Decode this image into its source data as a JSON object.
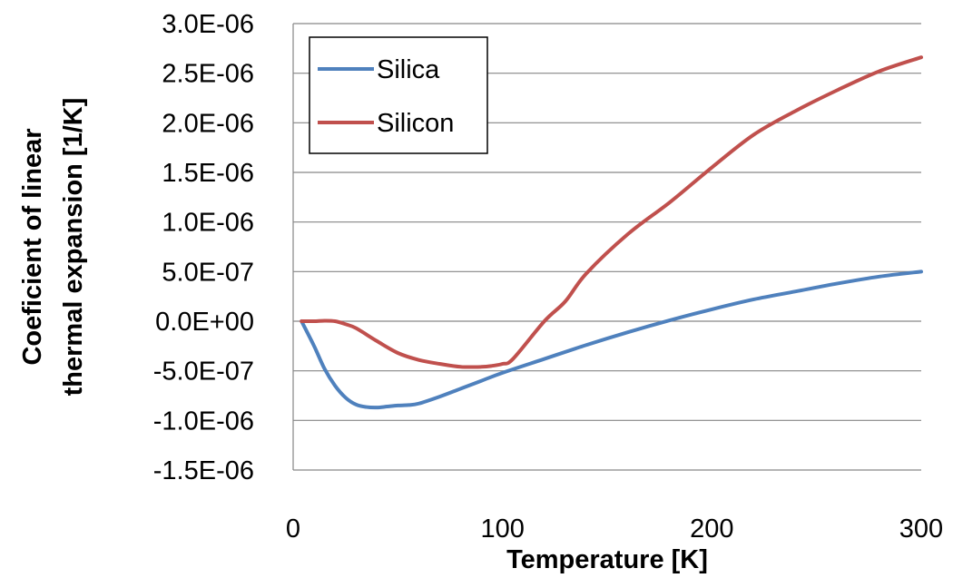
{
  "chart_data": {
    "type": "line",
    "title": "",
    "xlabel": "Temperature [K]",
    "ylabel_lines": [
      "Coeficient of linear",
      "thermal expansion [1/K]"
    ],
    "xlim": [
      0,
      300
    ],
    "ylim": [
      -1.5e-06,
      3e-06
    ],
    "x_ticks": [
      0,
      100,
      200,
      300
    ],
    "x_tick_labels": [
      "0",
      "100",
      "200",
      "300"
    ],
    "y_ticks": [
      3e-06,
      2.5e-06,
      2e-06,
      1.5e-06,
      1e-06,
      5e-07,
      0,
      -5e-07,
      -1e-06,
      -1.5e-06
    ],
    "y_tick_labels": [
      "3.0E-06",
      "2.5E-06",
      "2.0E-06",
      "1.5E-06",
      "1.0E-06",
      "5.0E-07",
      "0.0E+00",
      "-5.0E-07",
      "-1.0E-06",
      "-1.5E-06"
    ],
    "grid": "horizontal",
    "legend_position": "top-left",
    "series": [
      {
        "name": "Silica",
        "color": "#4f81bd",
        "x": [
          4,
          10,
          15,
          20,
          25,
          30,
          35,
          40,
          45,
          50,
          55,
          60,
          70,
          80,
          90,
          100,
          120,
          140,
          160,
          180,
          200,
          220,
          240,
          260,
          280,
          300
        ],
        "y": [
          0,
          -2.5e-07,
          -4.8e-07,
          -6.5e-07,
          -7.7e-07,
          -8.4e-07,
          -8.65e-07,
          -8.7e-07,
          -8.6e-07,
          -8.5e-07,
          -8.45e-07,
          -8.3e-07,
          -7.6e-07,
          -6.8e-07,
          -6e-07,
          -5.2e-07,
          -3.8e-07,
          -2.4e-07,
          -1.1e-07,
          1e-08,
          1.2e-07,
          2.2e-07,
          3e-07,
          3.8e-07,
          4.5e-07,
          5e-07
        ]
      },
      {
        "name": "Silicon",
        "color": "#c0504d",
        "x": [
          4,
          10,
          15,
          20,
          25,
          30,
          40,
          50,
          60,
          70,
          80,
          90,
          95,
          100,
          105,
          120,
          130,
          140,
          160,
          180,
          200,
          220,
          240,
          260,
          280,
          300
        ],
        "y": [
          0,
          0,
          5e-09,
          0,
          -3e-08,
          -7e-08,
          -2e-07,
          -3.2e-07,
          -3.9e-07,
          -4.3e-07,
          -4.6e-07,
          -4.6e-07,
          -4.5e-07,
          -4.3e-07,
          -3.8e-07,
          0,
          2e-07,
          4.8e-07,
          8.8e-07,
          1.2e-06,
          1.55e-06,
          1.88e-06,
          2.12e-06,
          2.33e-06,
          2.52e-06,
          2.66e-06
        ]
      }
    ]
  }
}
